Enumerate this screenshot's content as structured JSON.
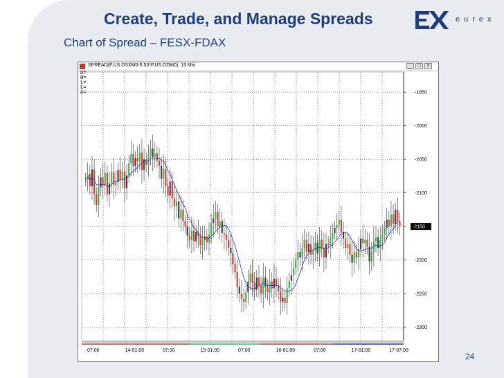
{
  "slide": {
    "title": "Create, Trade, and Manage Spreads",
    "subtitle": "Chart of Spread – FESX-FDAX",
    "logo_text": "eurex",
    "page_number": "24"
  },
  "window": {
    "title": "SPREAD(F.US.DSXM0-0.53*F.US.DDM0), 15 Min",
    "min_label": "_",
    "max_label": "□",
    "close_label": "×"
  },
  "ohlc_labels": [
    "O=",
    "H=",
    "L=",
    "L=",
    "Δ="
  ],
  "colors": {
    "title": "#1f3d7a",
    "up_bar": "#3cb44b",
    "down_bar": "#e03c31",
    "neutral_bar": "#404040",
    "moving_average": "#1f2fb0",
    "grid": "#202020",
    "current_price_bg": "#000000"
  },
  "chart_data": {
    "type": "bar",
    "subtype": "ohlc-spread-15min",
    "title": "SPREAD(F.US.DSXM0-0.53*F.US.DDM0), 15 Min",
    "y_axis_ticks": [
      -1950,
      -2000,
      -2050,
      -2100,
      -2150,
      -2200,
      -2250,
      -2300
    ],
    "current_value_label": "-2150",
    "ylim": [
      -2320,
      -1920
    ],
    "x_tick_labels": [
      "07:00",
      "14-01:00",
      "07:00",
      "15-01:00",
      "07:00",
      "16-01:00",
      "07:00",
      "17-01:00",
      "17-07:00"
    ],
    "grid": true,
    "moving_average_shown": true,
    "series_close": [
      -2080,
      -2072,
      -2090,
      -2065,
      -2102,
      -2118,
      -2092,
      -2077,
      -2088,
      -2070,
      -2102,
      -2086,
      -2069,
      -2088,
      -2084,
      -2066,
      -2080,
      -2068,
      -2093,
      -2074,
      -2056,
      -2042,
      -2060,
      -2048,
      -2053,
      -2040,
      -2066,
      -2050,
      -2058,
      -2046,
      -2034,
      -2047,
      -2041,
      -2052,
      -2060,
      -2079,
      -2064,
      -2090,
      -2104,
      -2083,
      -2108,
      -2120,
      -2113,
      -2138,
      -2125,
      -2142,
      -2150,
      -2164,
      -2170,
      -2156,
      -2172,
      -2158,
      -2164,
      -2178,
      -2170,
      -2165,
      -2174,
      -2162,
      -2145,
      -2138,
      -2128,
      -2150,
      -2142,
      -2160,
      -2162,
      -2170,
      -2182,
      -2190,
      -2206,
      -2218,
      -2240,
      -2250,
      -2258,
      -2262,
      -2248,
      -2232,
      -2220,
      -2234,
      -2244,
      -2226,
      -2238,
      -2250,
      -2226,
      -2240,
      -2248,
      -2232,
      -2242,
      -2228,
      -2238,
      -2246,
      -2262,
      -2256,
      -2264,
      -2242,
      -2231,
      -2222,
      -2212,
      -2200,
      -2188,
      -2196,
      -2182,
      -2170,
      -2188,
      -2176,
      -2192,
      -2186,
      -2174,
      -2190,
      -2170,
      -2182,
      -2196,
      -2176,
      -2178,
      -2168,
      -2160,
      -2152,
      -2148,
      -2140,
      -2158,
      -2168,
      -2182,
      -2176,
      -2192,
      -2204,
      -2188,
      -2196,
      -2184,
      -2168,
      -2175,
      -2170,
      -2180,
      -2202,
      -2188,
      -2172,
      -2166,
      -2182,
      -2170,
      -2162,
      -2152,
      -2140,
      -2150,
      -2132,
      -2146,
      -2125,
      -2142,
      -2150
    ]
  }
}
